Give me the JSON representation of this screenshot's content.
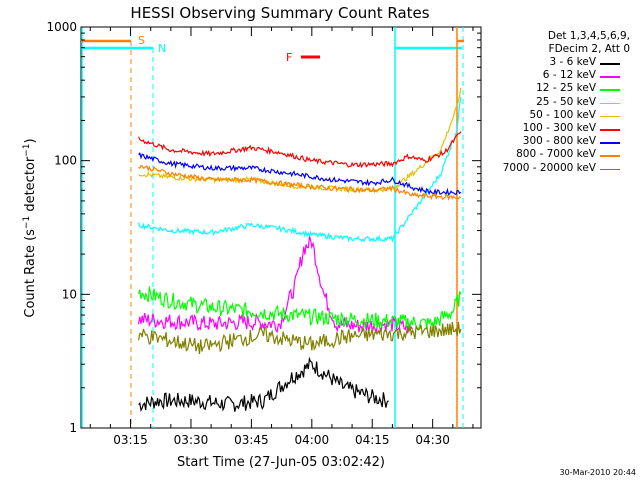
{
  "chart_data": {
    "type": "line",
    "title": "HESSI Observing Summary Count Rates",
    "xlabel": "Start Time (27-Jun-05 03:02:42)",
    "ylabel": "Count Rate (s⁻¹ detector⁻¹)",
    "ylabel_parts": {
      "main": "Count Rate (s",
      "sup1": "−1",
      "mid": " detector",
      "sup2": "−1",
      "end": ")"
    },
    "x_scale": "time",
    "x_range_minutes": [
      "03:02:42",
      "04:42:00"
    ],
    "y_scale": "log",
    "ylim": [
      1,
      1000
    ],
    "x_tick_labels": [
      "03:15",
      "03:30",
      "03:45",
      "04:00",
      "04:15",
      "04:30"
    ],
    "y_tick_labels": [
      "1",
      "10",
      "100",
      "1000"
    ],
    "legend_header": [
      "Det 1,3,4,5,6,9,",
      "FDecim 2, Att 0"
    ],
    "series": [
      {
        "name": "3 - 6 keV",
        "color": "#000000",
        "points": [
          [
            "03:17",
            1.5
          ],
          [
            "03:22",
            1.6
          ],
          [
            "03:30",
            1.6
          ],
          [
            "03:40",
            1.5
          ],
          [
            "03:48",
            1.6
          ],
          [
            "03:55",
            2.4
          ],
          [
            "04:00",
            3.0
          ],
          [
            "04:08",
            2.0
          ],
          [
            "04:15",
            1.7
          ],
          [
            "04:19",
            1.6
          ]
        ]
      },
      {
        "name": "6 - 12 keV",
        "color": "#ff00ff",
        "points": [
          [
            "03:17",
            6.5
          ],
          [
            "03:25",
            6.3
          ],
          [
            "03:35",
            6.0
          ],
          [
            "03:45",
            6.2
          ],
          [
            "03:52",
            6.0
          ],
          [
            "03:56",
            12
          ],
          [
            "03:58",
            22
          ],
          [
            "04:00",
            25
          ],
          [
            "04:03",
            10
          ],
          [
            "04:06",
            6.0
          ],
          [
            "04:12",
            5.8
          ],
          [
            "04:19",
            6.0
          ],
          [
            "04:25",
            5.5
          ]
        ]
      },
      {
        "name": "12 - 25 keV",
        "color": "#00ff00",
        "points": [
          [
            "03:17",
            10.5
          ],
          [
            "03:25",
            9.0
          ],
          [
            "03:35",
            8.0
          ],
          [
            "03:45",
            7.5
          ],
          [
            "03:55",
            7.0
          ],
          [
            "04:00",
            6.8
          ],
          [
            "04:10",
            6.5
          ],
          [
            "04:20",
            6.3
          ],
          [
            "04:30",
            6.0
          ],
          [
            "04:35",
            7.5
          ],
          [
            "04:37",
            10
          ]
        ]
      },
      {
        "name": "25 - 50 keV",
        "color": "#00ffff",
        "points": [
          [
            "03:17",
            33
          ],
          [
            "03:25",
            30
          ],
          [
            "03:35",
            29
          ],
          [
            "03:45",
            33
          ],
          [
            "03:52",
            31
          ],
          [
            "04:00",
            28
          ],
          [
            "04:10",
            26
          ],
          [
            "04:20",
            26
          ],
          [
            "04:26",
            45
          ],
          [
            "04:32",
            80
          ],
          [
            "04:36",
            170
          ],
          [
            "04:37",
            300
          ]
        ]
      },
      {
        "name": "50 - 100 keV",
        "color": "#e0c000",
        "points": [
          [
            "03:17",
            80
          ],
          [
            "03:25",
            75
          ],
          [
            "03:35",
            72
          ],
          [
            "03:45",
            72
          ],
          [
            "03:55",
            65
          ],
          [
            "04:05",
            62
          ],
          [
            "04:15",
            60
          ],
          [
            "04:20",
            62
          ],
          [
            "04:25",
            80
          ],
          [
            "04:32",
            120
          ],
          [
            "04:36",
            250
          ],
          [
            "04:37",
            350
          ]
        ]
      },
      {
        "name": "100 - 300 keV",
        "color": "#ff0000",
        "points": [
          [
            "03:17",
            145
          ],
          [
            "03:25",
            120
          ],
          [
            "03:35",
            112
          ],
          [
            "03:45",
            125
          ],
          [
            "03:52",
            115
          ],
          [
            "04:00",
            100
          ],
          [
            "04:10",
            93
          ],
          [
            "04:20",
            95
          ],
          [
            "04:24",
            108
          ],
          [
            "04:28",
            100
          ],
          [
            "04:33",
            115
          ],
          [
            "04:37",
            165
          ]
        ]
      },
      {
        "name": "300 - 800 keV",
        "color": "#0000ff",
        "points": [
          [
            "03:17",
            110
          ],
          [
            "03:25",
            95
          ],
          [
            "03:35",
            88
          ],
          [
            "03:45",
            88
          ],
          [
            "03:55",
            80
          ],
          [
            "04:05",
            72
          ],
          [
            "04:15",
            68
          ],
          [
            "04:20",
            72
          ],
          [
            "04:25",
            63
          ],
          [
            "04:30",
            58
          ],
          [
            "04:37",
            58
          ]
        ]
      },
      {
        "name": "800 - 7000 keV",
        "color": "#ff8000",
        "points": [
          [
            "03:17",
            92
          ],
          [
            "03:25",
            80
          ],
          [
            "03:35",
            72
          ],
          [
            "03:45",
            72
          ],
          [
            "03:55",
            66
          ],
          [
            "04:05",
            62
          ],
          [
            "04:15",
            60
          ],
          [
            "04:20",
            62
          ],
          [
            "04:25",
            55
          ],
          [
            "04:30",
            54
          ],
          [
            "04:37",
            53
          ]
        ]
      },
      {
        "name": "7000 - 20000 keV",
        "color": "#808000",
        "points": [
          [
            "03:17",
            5.0
          ],
          [
            "03:25",
            4.5
          ],
          [
            "03:33",
            4.0
          ],
          [
            "03:40",
            4.5
          ],
          [
            "03:48",
            5.0
          ],
          [
            "03:55",
            4.5
          ],
          [
            "04:00",
            4.2
          ],
          [
            "04:08",
            4.8
          ],
          [
            "04:15",
            5.0
          ],
          [
            "04:25",
            5.2
          ],
          [
            "04:37",
            5.5
          ]
        ]
      }
    ],
    "annotations": [
      {
        "label": "S",
        "color": "#ff8000"
      },
      {
        "label": "N",
        "color": "#00ffff"
      },
      {
        "label": "F",
        "color": "#ff0000"
      }
    ],
    "timestamp": "30-Mar-2010 20:44"
  }
}
